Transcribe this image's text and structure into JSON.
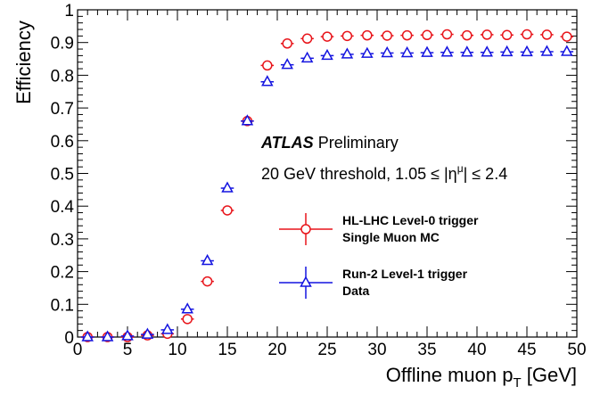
{
  "chart_data": {
    "type": "scatter",
    "xlabel": "Offline muon p",
    "xlabel_sub": "T",
    "xlabel_unit": " [GeV]",
    "ylabel": "Efficiency",
    "xlim": [
      0,
      50
    ],
    "ylim": [
      0,
      1
    ],
    "x_ticks": [
      0,
      5,
      10,
      15,
      20,
      25,
      30,
      35,
      40,
      45,
      50
    ],
    "y_ticks": [
      0,
      0.1,
      0.2,
      0.3,
      0.4,
      0.5,
      0.6,
      0.7,
      0.8,
      0.9,
      1
    ],
    "y_tick_labels": [
      "0",
      "0.1",
      "0.2",
      "0.3",
      "0.4",
      "0.5",
      "0.6",
      "0.7",
      "0.8",
      "0.9",
      "1"
    ],
    "grid": false,
    "legend_position": "center-right",
    "annotation": {
      "experiment": "ATLAS",
      "label": "Preliminary",
      "threshold_prefix": "20 GeV threshold, 1.05 ≤ |η",
      "threshold_sup": "μ",
      "threshold_suffix": "| ≤ 2.4"
    },
    "series": [
      {
        "name_line1": "HL-LHC Level-0 trigger",
        "name_line2": "Single Muon MC",
        "color": "#e8141a",
        "marker": "circle",
        "x": [
          1,
          3,
          5,
          7,
          9,
          11,
          13,
          15,
          17,
          19,
          21,
          23,
          25,
          27,
          29,
          31,
          33,
          35,
          37,
          39,
          41,
          43,
          45,
          47,
          49
        ],
        "y": [
          0.0,
          0.0,
          0.0,
          0.005,
          0.01,
          0.055,
          0.17,
          0.387,
          0.66,
          0.83,
          0.897,
          0.912,
          0.918,
          0.92,
          0.922,
          0.921,
          0.922,
          0.923,
          0.925,
          0.922,
          0.924,
          0.923,
          0.925,
          0.924,
          0.918
        ]
      },
      {
        "name_line1": "Run-2 Level-1 trigger",
        "name_line2": "Data",
        "color": "#1414e0",
        "marker": "triangle",
        "x": [
          1,
          3,
          5,
          7,
          9,
          11,
          13,
          15,
          17,
          19,
          21,
          23,
          25,
          27,
          29,
          31,
          33,
          35,
          37,
          39,
          41,
          43,
          45,
          47,
          49
        ],
        "y": [
          0.0,
          0.0,
          0.003,
          0.008,
          0.022,
          0.085,
          0.233,
          0.455,
          0.66,
          0.78,
          0.832,
          0.852,
          0.86,
          0.864,
          0.866,
          0.868,
          0.868,
          0.869,
          0.87,
          0.87,
          0.87,
          0.871,
          0.871,
          0.872,
          0.872
        ]
      }
    ]
  }
}
